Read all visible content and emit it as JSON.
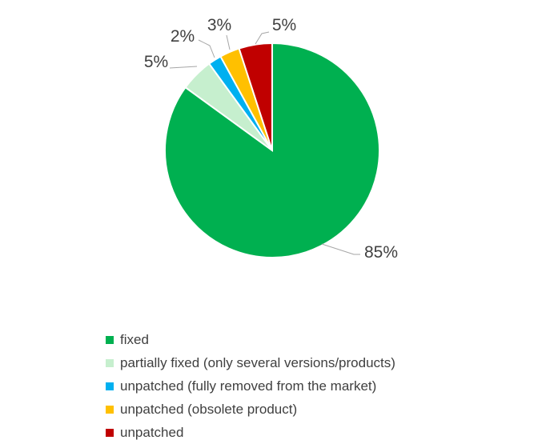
{
  "chart_data": {
    "type": "pie",
    "categories": [
      "fixed",
      "partially fixed (only several versions/products)",
      "unpatched (fully removed from the market)",
      "unpatched (obsolete product)",
      "unpatched"
    ],
    "values": [
      85,
      5,
      2,
      3,
      5
    ],
    "data_labels": [
      "85%",
      "5%",
      "2%",
      "3%",
      "5%"
    ],
    "colors": [
      "#00b050",
      "#c6efce",
      "#00b0f0",
      "#ffc000",
      "#c00000"
    ],
    "title": "",
    "legend_position": "bottom",
    "start_angle": "12 o'clock",
    "direction": "clockwise"
  }
}
